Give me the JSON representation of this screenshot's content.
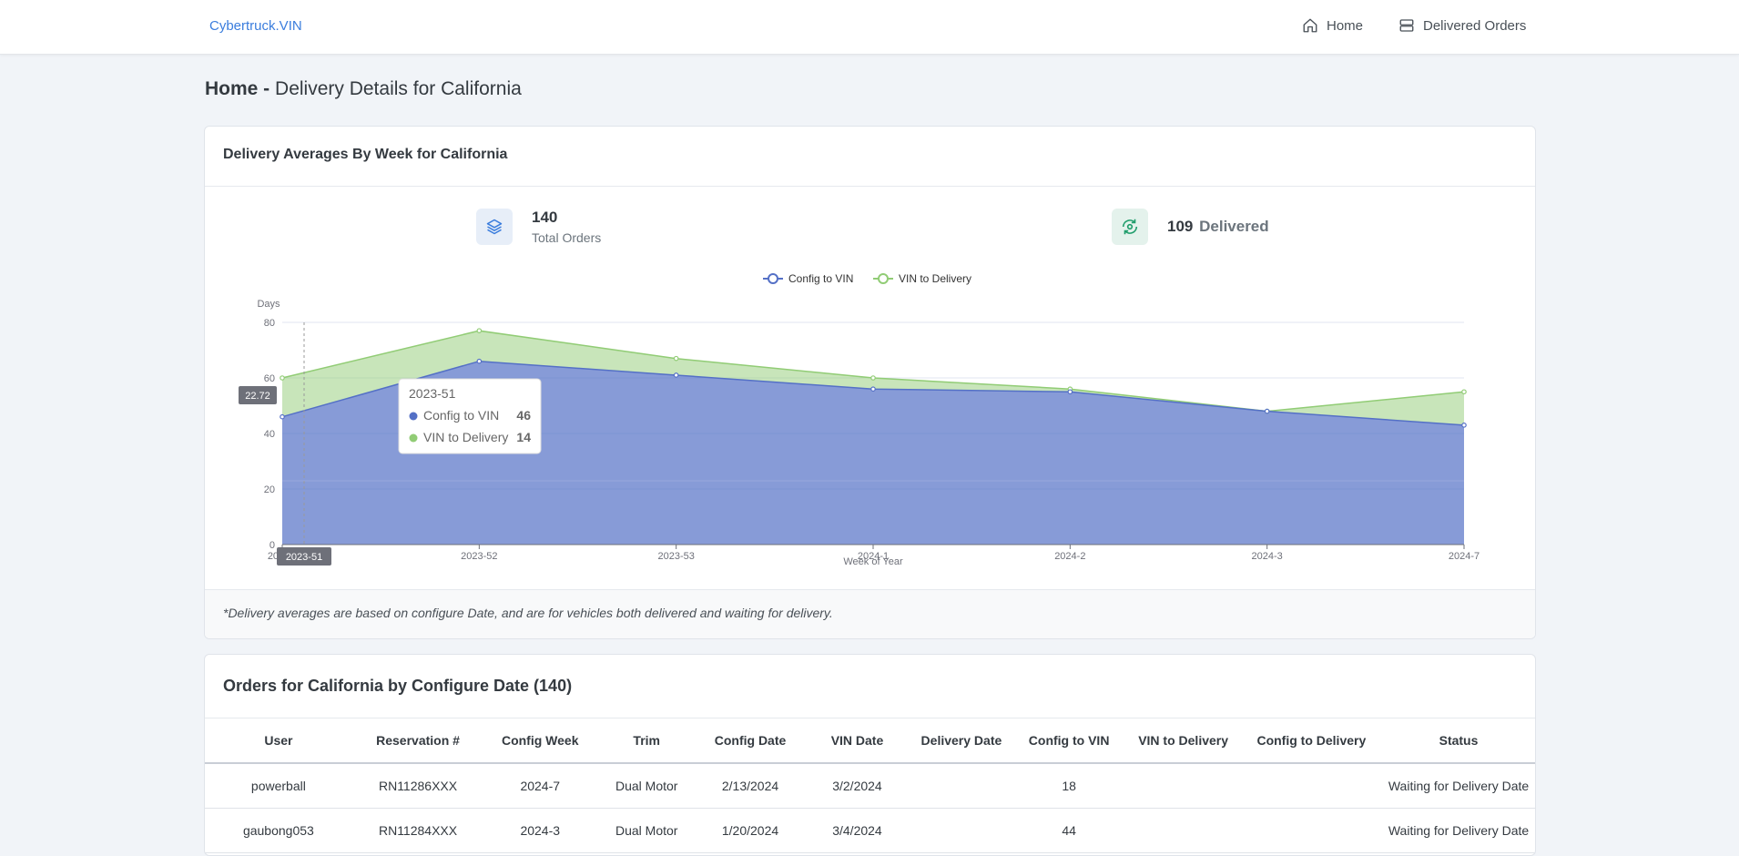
{
  "nav": {
    "brand": "Cybertruck.VIN",
    "home_label": "Home",
    "orders_label": "Delivered Orders"
  },
  "page": {
    "title_bold": "Home -",
    "title_rest": "Delivery Details for California"
  },
  "averages_card": {
    "title": "Delivery Averages By Week for California",
    "total_orders_value": "140",
    "total_orders_label": "Total Orders",
    "delivered_value": "109",
    "delivered_label": "Delivered",
    "footer_note": "*Delivery averages are based on configure Date, and are for vehicles both delivered and waiting for delivery."
  },
  "chart_data": {
    "type": "area",
    "stacked": true,
    "categories": [
      "2023-51",
      "2023-52",
      "2023-53",
      "2024-1",
      "2024-2",
      "2024-3",
      "2024-7"
    ],
    "series": [
      {
        "name": "Config to VIN",
        "color": "#5470c6",
        "values": [
          46,
          66,
          61,
          56,
          55,
          48,
          43
        ]
      },
      {
        "name": "VIN to Delivery",
        "color": "#91cc75",
        "values": [
          14,
          11,
          6,
          4,
          1,
          0,
          12
        ]
      }
    ],
    "ylabel": "Days",
    "xlabel": "Week of Year",
    "ylim": [
      0,
      80
    ],
    "yticks": [
      "0",
      "20",
      "40",
      "60",
      "80"
    ],
    "grid": true,
    "legend_position": "top-center",
    "tooltip": {
      "title": "2023-51",
      "rows": [
        {
          "name": "Config to VIN",
          "value": "46",
          "color": "#5470c6"
        },
        {
          "name": "VIN to Delivery",
          "value": "14",
          "color": "#91cc75"
        }
      ]
    },
    "axis_pointer_y_label": "22.72",
    "axis_pointer_x_label": "2023-51",
    "first_tick_visible": "202"
  },
  "orders_card": {
    "title": "Orders for California by Configure Date (140)",
    "columns": [
      "User",
      "Reservation #",
      "Config Week",
      "Trim",
      "Config Date",
      "VIN Date",
      "Delivery Date",
      "Config to VIN",
      "VIN to Delivery",
      "Config to Delivery",
      "Status"
    ],
    "rows": [
      [
        "powerball",
        "RN11286XXX",
        "2024-7",
        "Dual Motor",
        "2/13/2024",
        "3/2/2024",
        "",
        "18",
        "",
        "",
        "Waiting for Delivery Date"
      ],
      [
        "gaubong053",
        "RN11284XXX",
        "2024-3",
        "Dual Motor",
        "1/20/2024",
        "3/4/2024",
        "",
        "44",
        "",
        "",
        "Waiting for Delivery Date"
      ]
    ]
  }
}
